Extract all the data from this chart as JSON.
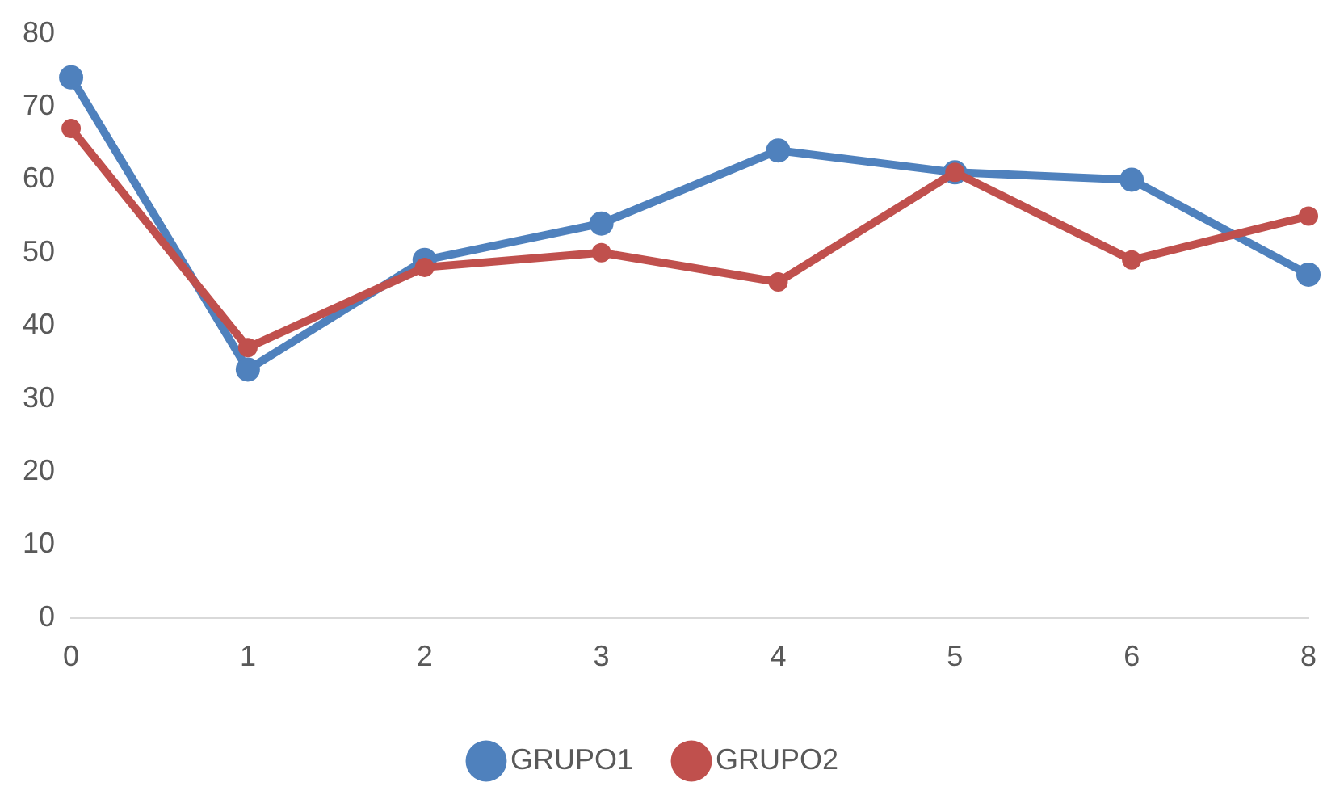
{
  "chart_data": {
    "type": "line",
    "categories": [
      "0",
      "1",
      "2",
      "3",
      "4",
      "5",
      "6",
      "8"
    ],
    "series": [
      {
        "name": "GRUPO1",
        "color": "#4f81bd",
        "values": [
          74,
          34,
          49,
          54,
          64,
          61,
          60,
          47
        ]
      },
      {
        "name": "GRUPO2",
        "color": "#c0504d",
        "values": [
          67,
          37,
          48,
          50,
          46,
          61,
          49,
          55
        ]
      }
    ],
    "ylim": [
      0,
      80
    ],
    "yticks": [
      0,
      10,
      20,
      30,
      40,
      50,
      60,
      70,
      80
    ],
    "grid": false,
    "legend": "bottom",
    "marker": "circle",
    "line_style": "solid"
  }
}
